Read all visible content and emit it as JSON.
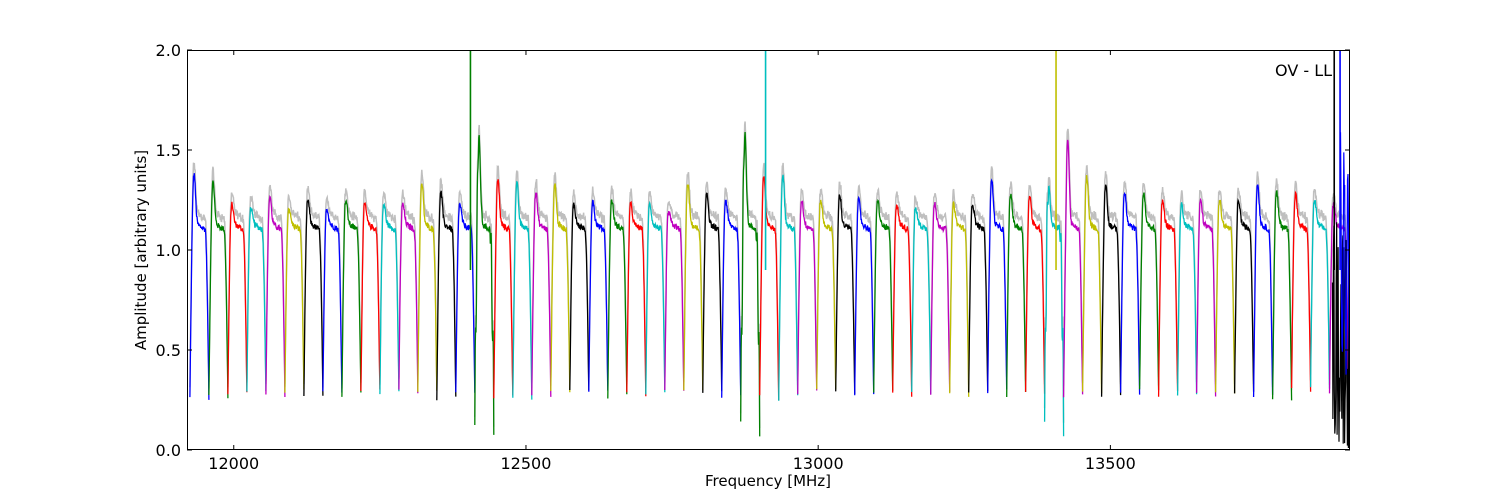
{
  "chart_data": {
    "type": "line",
    "title": "",
    "annotation": "OV - LL",
    "xlabel": "Frequency [MHz]",
    "ylabel": "Amplitude [arbitrary units]",
    "xlim": [
      11920,
      13910
    ],
    "ylim": [
      0.0,
      2.0
    ],
    "x_ticks": [
      12000,
      12500,
      13000,
      13500
    ],
    "y_ticks": [
      0.0,
      0.5,
      1.0,
      1.5,
      2.0
    ],
    "x_tick_labels": [
      "12000",
      "12500",
      "13000",
      "13500"
    ],
    "y_tick_labels": [
      "0.0",
      "0.5",
      "1.0",
      "1.5",
      "2.0"
    ],
    "grid": false,
    "legend": "none",
    "series_colors": [
      "#0000ff",
      "#008000",
      "#ff0000",
      "#00bfbf",
      "#bf00bf",
      "#bfbf00",
      "#000000"
    ],
    "reference_color": "#bfbfbf",
    "channel_width_mhz": 32.5,
    "channel_peaks": [
      1.35,
      1.31,
      1.2,
      1.18,
      1.24,
      1.18,
      1.22,
      1.18,
      1.22,
      1.2,
      1.2,
      1.2,
      1.3,
      1.26,
      1.2,
      1.52,
      1.32,
      1.3,
      1.26,
      1.3,
      1.2,
      1.22,
      1.22,
      1.2,
      1.2,
      1.16,
      1.3,
      1.26,
      1.22,
      1.55,
      1.34,
      1.35,
      1.22,
      1.22,
      1.25,
      1.22,
      1.22,
      1.2,
      1.18,
      1.2,
      1.2,
      1.2,
      1.32,
      1.25,
      1.24,
      1.28,
      1.52,
      1.34,
      1.3,
      1.26,
      1.26,
      1.22,
      1.2,
      1.22,
      1.22,
      1.22,
      1.3,
      1.26,
      1.25,
      1.22,
      1.2
    ],
    "channel_troughs": [
      0.26,
      0.27,
      0.28,
      0.3,
      0.28,
      0.29,
      0.28,
      0.28,
      0.28,
      0.29,
      0.28,
      0.29,
      0.3,
      0.26,
      0.28,
      0.14,
      0.26,
      0.26,
      0.28,
      0.3,
      0.29,
      0.29,
      0.27,
      0.28,
      0.28,
      0.3,
      0.29,
      0.28,
      0.26,
      0.13,
      0.26,
      0.26,
      0.29,
      0.29,
      0.28,
      0.28,
      0.29,
      0.28,
      0.29,
      0.28,
      0.28,
      0.3,
      0.29,
      0.28,
      0.28,
      0.14,
      0.27,
      0.28,
      0.28,
      0.28,
      0.29,
      0.28,
      0.28,
      0.28,
      0.28,
      0.29,
      0.28,
      0.25,
      0.3,
      0.3,
      0.29
    ],
    "spikes": [
      {
        "x": 12405,
        "y": 2.0,
        "color": "#008000"
      },
      {
        "x": 12910,
        "y": 2.0,
        "color": "#00bfbf"
      },
      {
        "x": 13407,
        "y": 2.0,
        "color": "#bfbf00"
      },
      {
        "x": 13883,
        "y": 2.0,
        "color": "#000000"
      },
      {
        "x": 13893,
        "y": 2.0,
        "color": "#0000ff"
      }
    ]
  }
}
